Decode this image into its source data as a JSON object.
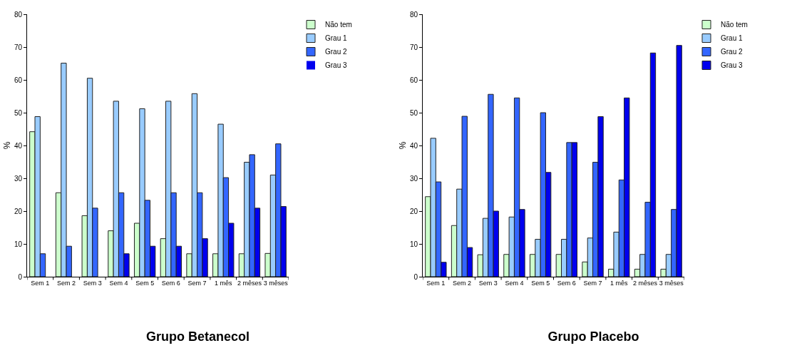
{
  "chart_data": [
    {
      "type": "bar",
      "title": "Grupo Betanecol",
      "ylabel": "%",
      "categories": [
        "Sem 1",
        "Sem 2",
        "Sem 3",
        "Sem 4",
        "Sem 5",
        "Sem 6",
        "Sem 7",
        "1 mês",
        "2 mêses",
        "3 mêses"
      ],
      "ylim": [
        0,
        80
      ],
      "yticks": [
        0,
        10,
        20,
        30,
        40,
        50,
        60,
        70,
        80
      ],
      "grid": false,
      "legend": "top right",
      "series": [
        {
          "name": "Não tem",
          "color": "#ccffcc",
          "values": [
            44.2,
            25.6,
            18.6,
            14,
            16.3,
            11.6,
            7,
            7,
            7,
            7.1
          ]
        },
        {
          "name": "Grau 1",
          "color": "#99ccff",
          "values": [
            48.8,
            65.1,
            60.5,
            53.5,
            51.2,
            53.5,
            55.8,
            46.5,
            34.9,
            31
          ]
        },
        {
          "name": "Grau 2",
          "color": "#3366ff",
          "values": [
            7,
            9.3,
            20.9,
            25.6,
            23.3,
            25.6,
            25.6,
            30.2,
            37.2,
            40.5
          ]
        },
        {
          "name": "Grau 3",
          "color": "#0000ee",
          "values": [
            0,
            0,
            0,
            7,
            9.3,
            9.3,
            11.6,
            16.3,
            20.9,
            21.4
          ]
        }
      ]
    },
    {
      "type": "bar",
      "title": "Grupo Placebo",
      "ylabel": "%",
      "categories": [
        "Sem 1",
        "Sem 2",
        "Sem 3",
        "Sem 4",
        "Sem 5",
        "Sem 6",
        "Sem 7",
        "1 mês",
        "2 mêses",
        "3 mêses"
      ],
      "ylim": [
        0,
        80
      ],
      "yticks": [
        0,
        10,
        20,
        30,
        40,
        50,
        60,
        70,
        80
      ],
      "grid": false,
      "legend": "top right",
      "series": [
        {
          "name": "Não tem",
          "color": "#ccffcc",
          "values": [
            24.4,
            15.6,
            6.7,
            6.8,
            6.8,
            6.8,
            4.5,
            2.3,
            2.3,
            2.3
          ]
        },
        {
          "name": "Grau 1",
          "color": "#99ccff",
          "values": [
            42.2,
            26.7,
            17.8,
            18.2,
            11.4,
            11.4,
            11.8,
            13.6,
            6.8,
            6.8
          ]
        },
        {
          "name": "Grau 2",
          "color": "#3366ff",
          "values": [
            28.9,
            48.9,
            55.6,
            54.5,
            50,
            40.9,
            34.9,
            29.5,
            22.7,
            20.5
          ]
        },
        {
          "name": "Grau 3",
          "color": "#0000ee",
          "values": [
            4.4,
            8.9,
            20,
            20.5,
            31.8,
            40.9,
            48.8,
            54.5,
            68.2,
            70.5
          ]
        }
      ]
    }
  ]
}
